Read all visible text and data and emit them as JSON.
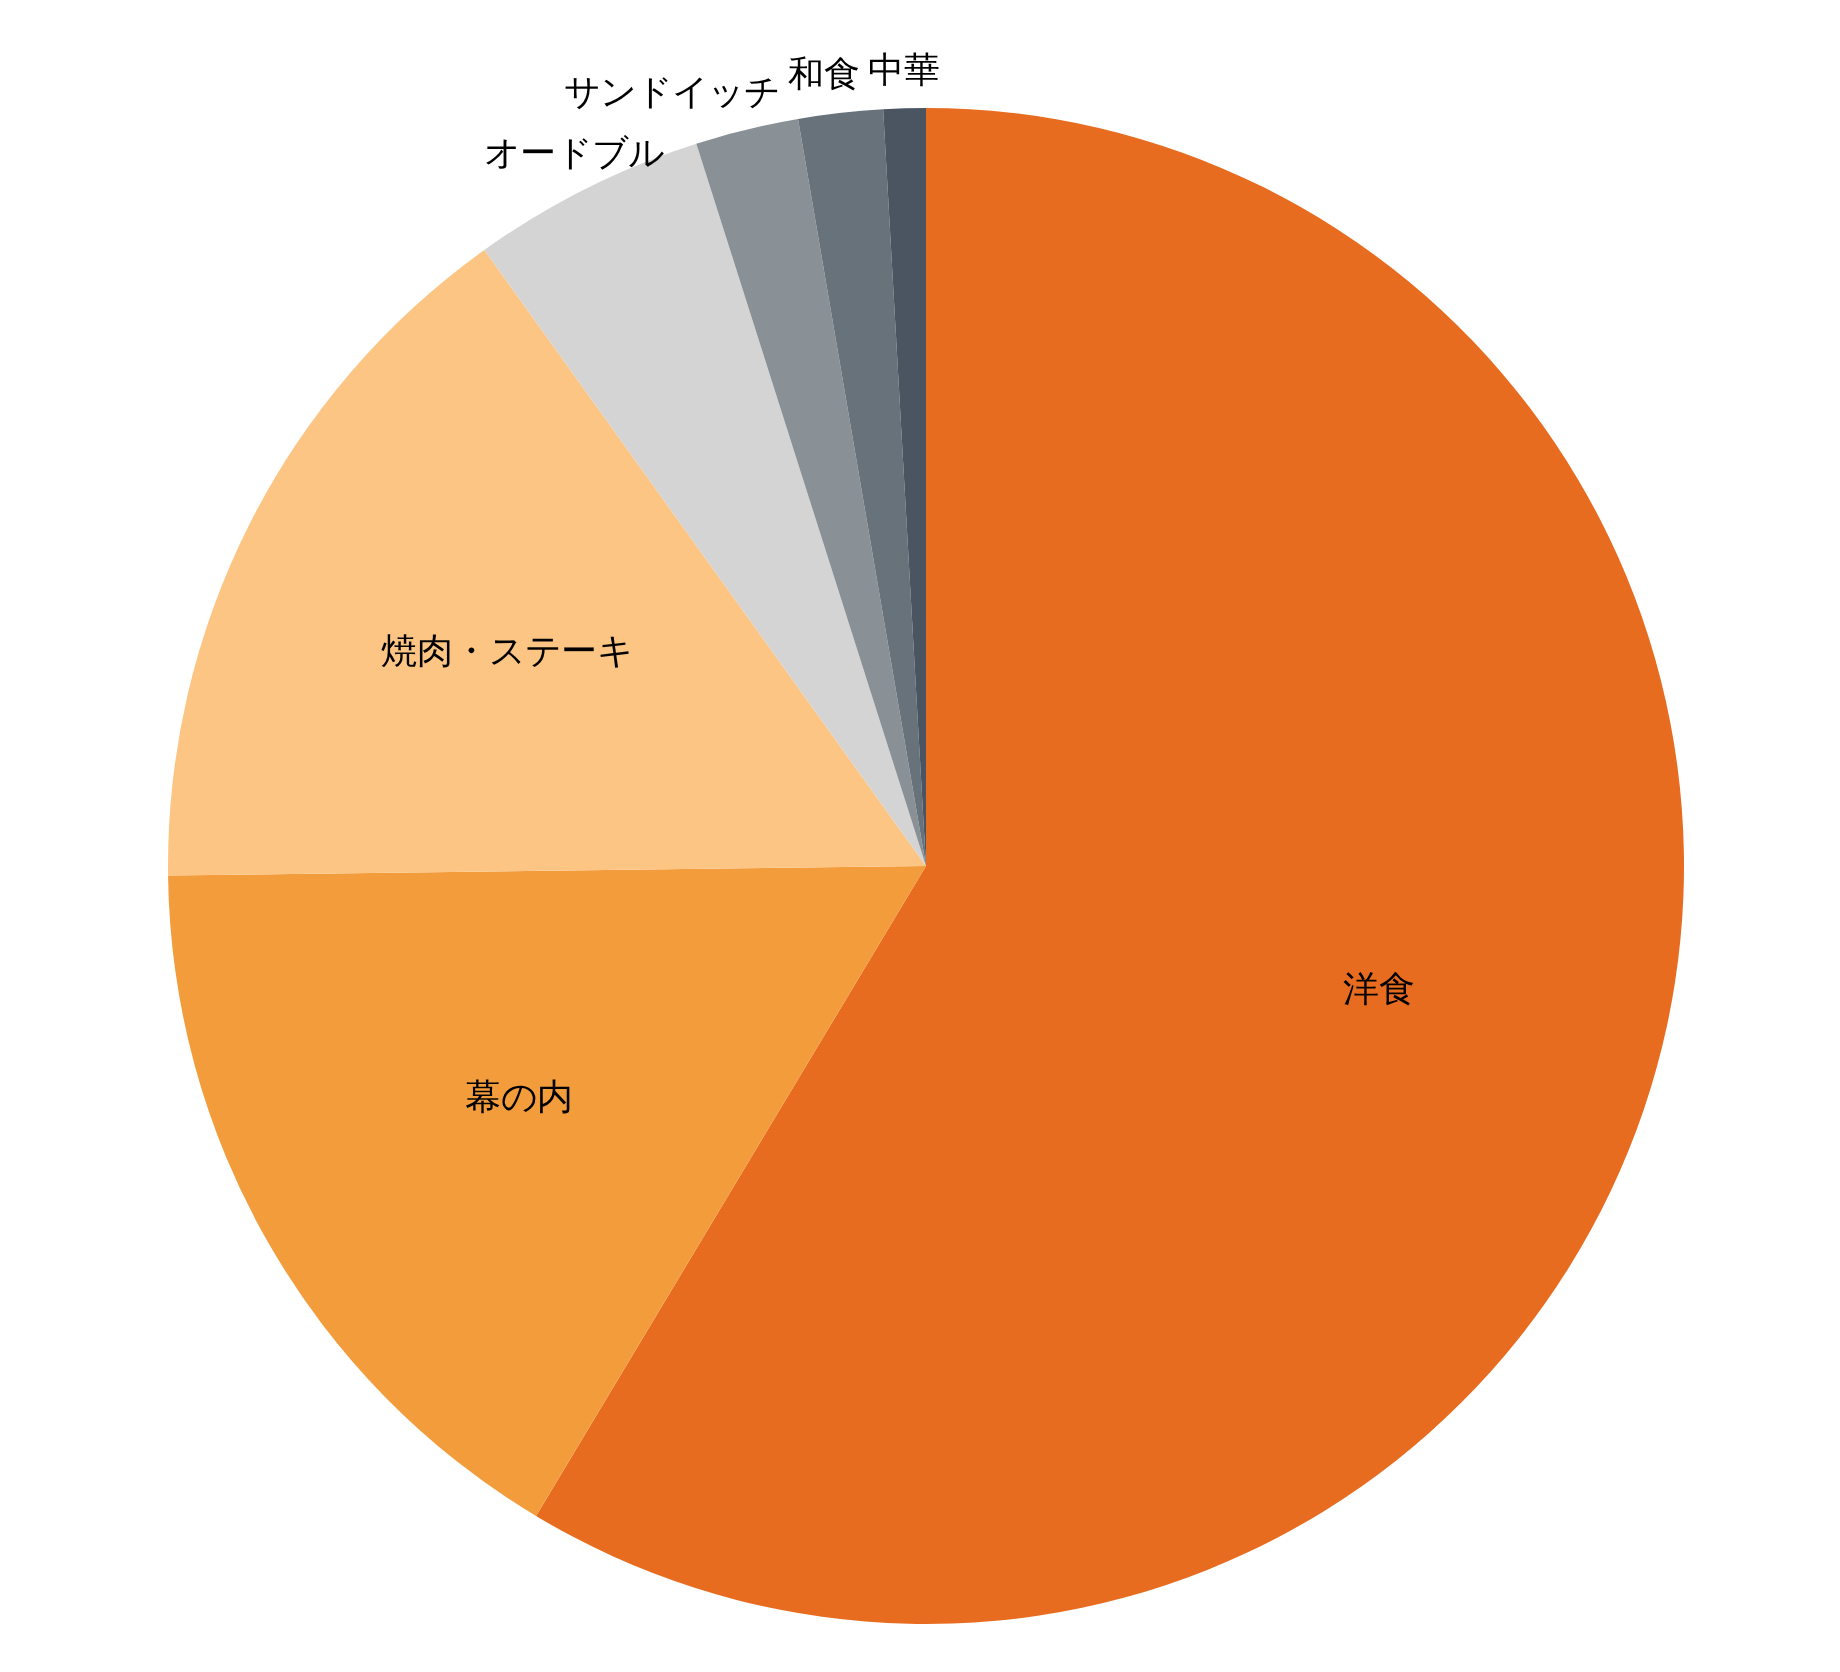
{
  "chart_data": {
    "type": "pie",
    "categories": [
      "洋食",
      "幕の内",
      "焼肉・ステーキ",
      "オードブル",
      "サンドイッチ",
      "和食",
      "中華"
    ],
    "values": [
      58.6,
      16.2,
      15.3,
      5.0,
      2.2,
      1.8,
      0.9
    ],
    "colors": [
      "#e86c1f",
      "#f39c3c",
      "#fdc584",
      "#d4d4d4",
      "#8a9196",
      "#67727b",
      "#4b5562"
    ],
    "legend": false
  }
}
